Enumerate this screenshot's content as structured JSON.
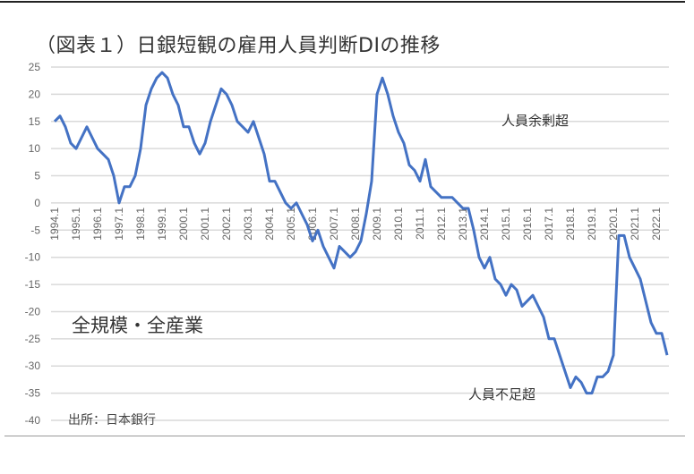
{
  "chart_data": {
    "type": "line",
    "title": "（図表１）日銀短観の雇用人員判断DIの推移",
    "xlabel": "",
    "ylabel": "",
    "ylim": [
      -40,
      25
    ],
    "yticks": [
      "25",
      "20",
      "15",
      "10",
      "5",
      "0",
      "-5",
      "-10",
      "-15",
      "-20",
      "-25",
      "-30",
      "-35",
      "-40"
    ],
    "ytick_values": [
      25,
      20,
      15,
      10,
      5,
      0,
      -5,
      -10,
      -15,
      -20,
      -25,
      -30,
      -35,
      -40
    ],
    "xticks": [
      "1994.1",
      "1995.1",
      "1996.1",
      "1997.1",
      "1998.1",
      "1999.1",
      "2000.1",
      "2001.1",
      "2002.1",
      "2003.1",
      "2004.1",
      "2005.1",
      "2006.1",
      "2007.1",
      "2008.1",
      "2009.1",
      "2010.1",
      "2011.1",
      "2012.1",
      "2013.1",
      "2014.1",
      "2015.1",
      "2016.1",
      "2017.1",
      "2018.1",
      "2019.1",
      "2020.1",
      "2021.1",
      "2022.1"
    ],
    "x_start": "1994.1",
    "frequency": "quarterly",
    "grid": true,
    "series": [
      {
        "name": "雇用人員判断DI",
        "color": "#4472C4",
        "values": [
          15,
          16,
          14,
          11,
          10,
          12,
          14,
          12,
          10,
          9,
          8,
          5,
          0,
          3,
          3,
          5,
          10,
          18,
          21,
          23,
          24,
          23,
          20,
          18,
          14,
          14,
          11,
          9,
          11,
          15,
          18,
          21,
          20,
          18,
          15,
          14,
          13,
          15,
          12,
          9,
          4,
          4,
          2,
          0,
          -1,
          0,
          -2,
          -4,
          -7,
          -5,
          -8,
          -10,
          -12,
          -8,
          -9,
          -10,
          -9,
          -7,
          -2,
          4,
          20,
          23,
          20,
          16,
          13,
          11,
          7,
          6,
          4,
          8,
          3,
          2,
          1,
          1,
          1,
          0,
          -1,
          -1,
          -5,
          -10,
          -12,
          -10,
          -14,
          -15,
          -17,
          -15,
          -16,
          -19,
          -18,
          -17,
          -19,
          -21,
          -25,
          -25,
          -28,
          -31,
          -34,
          -32,
          -33,
          -35,
          -35,
          -32,
          -32,
          -31,
          -28,
          -6,
          -6,
          -10,
          -12,
          -14,
          -18,
          -22,
          -24,
          -24,
          -28
        ]
      }
    ],
    "annotations": [
      "人員余剰超",
      "人員不足超",
      "全規模・全産業",
      "出所：日本銀行"
    ]
  }
}
